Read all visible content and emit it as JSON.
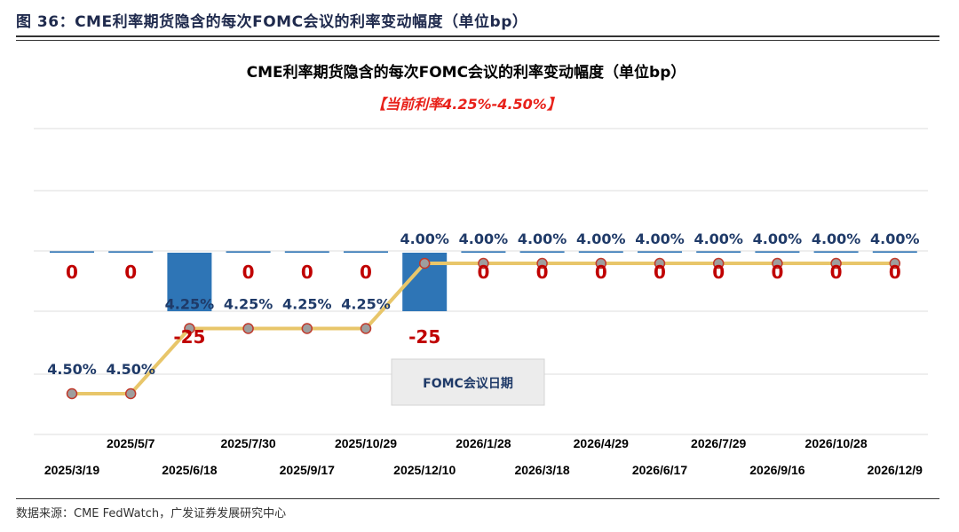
{
  "header": {
    "figure_title": "图 36：CME利率期货隐含的每次FOMC会议的利率变动幅度（单位bp）",
    "source": "数据来源：CME FedWatch，广发证券发展研究中心"
  },
  "colors": {
    "rate_line": "#e8c66a",
    "marker_fill": "#9e9e9e",
    "marker_edge": "#c0392b",
    "bar": "#2e75b6",
    "rate_label": "#1f3a68",
    "change_label": "#c00000",
    "subtitle": "#e8211a"
  },
  "chart_data": {
    "type": "bar",
    "title": "CME利率期货隐含的每次FOMC会议的利率变动幅度（单位bp）",
    "subtitle": "【当前利率4.25%-4.50%】",
    "xlabel": "FOMC会议日期",
    "ylabel": "",
    "categories": [
      "2025/3/19",
      "2025/5/7",
      "2025/6/18",
      "2025/7/30",
      "2025/9/17",
      "2025/10/29",
      "2025/12/10",
      "2026/1/28",
      "2026/3/18",
      "2026/4/29",
      "2026/6/17",
      "2026/7/29",
      "2026/9/16",
      "2026/10/28",
      "2026/12/9"
    ],
    "series": [
      {
        "type": "line",
        "values": [
          4.5,
          4.5,
          4.25,
          4.25,
          4.25,
          4.25,
          4.0,
          4.0,
          4.0,
          4.0,
          4.0,
          4.0,
          4.0,
          4.0,
          4.0
        ],
        "labels": [
          "4.50%",
          "4.50%",
          "4.25%",
          "4.25%",
          "4.25%",
          "4.25%",
          "4.00%",
          "4.00%",
          "4.00%",
          "4.00%",
          "4.00%",
          "4.00%",
          "4.00%",
          "4.00%",
          "4.00%"
        ]
      },
      {
        "type": "bar",
        "values": [
          0,
          0,
          -25,
          0,
          0,
          0,
          -25,
          0,
          0,
          0,
          0,
          0,
          0,
          0,
          0
        ],
        "labels": [
          "0",
          "0",
          "-25",
          "0",
          "0",
          "0",
          "-25",
          "0",
          "0",
          "0",
          "0",
          "0",
          "0",
          "0",
          "0"
        ]
      }
    ],
    "grid": true,
    "legend": "none"
  }
}
